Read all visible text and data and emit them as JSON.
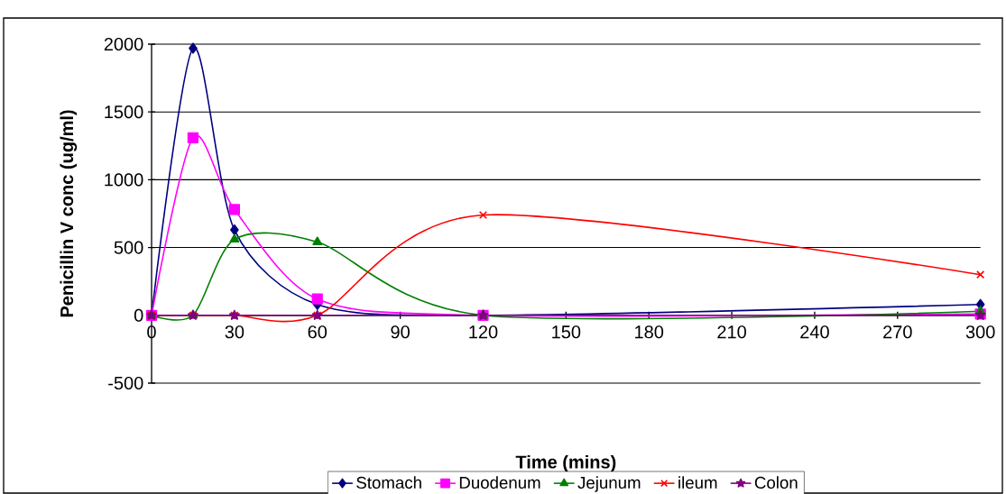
{
  "chart_data": {
    "type": "line",
    "xlabel": "Time (mins)",
    "ylabel": "Penicillin V conc (ug/ml)",
    "x": [
      0,
      15,
      30,
      60,
      120,
      300
    ],
    "series": [
      {
        "name": "Stomach",
        "color": "#000080",
        "marker": "diamond",
        "values": [
          0,
          1970,
          630,
          80,
          0,
          80
        ]
      },
      {
        "name": "Duodenum",
        "color": "#ff00ff",
        "marker": "square",
        "values": [
          0,
          1310,
          780,
          120,
          0,
          10
        ]
      },
      {
        "name": "Jejunum",
        "color": "#008000",
        "marker": "triangle",
        "values": [
          0,
          0,
          560,
          540,
          0,
          30
        ]
      },
      {
        "name": "ileum",
        "color": "#ff0000",
        "marker": "cross",
        "values": [
          0,
          0,
          0,
          0,
          740,
          300
        ]
      },
      {
        "name": "Colon",
        "color": "#800080",
        "marker": "star",
        "values": [
          0,
          0,
          0,
          0,
          0,
          0
        ]
      }
    ],
    "xlim": [
      0,
      300
    ],
    "xticks": [
      0,
      30,
      60,
      90,
      120,
      150,
      180,
      210,
      240,
      270,
      300
    ],
    "ylim": [
      -500,
      2000
    ],
    "yticks": [
      -500,
      0,
      500,
      1000,
      1500,
      2000
    ],
    "grid": "y",
    "legend": "bottom",
    "line_style": "solid"
  }
}
